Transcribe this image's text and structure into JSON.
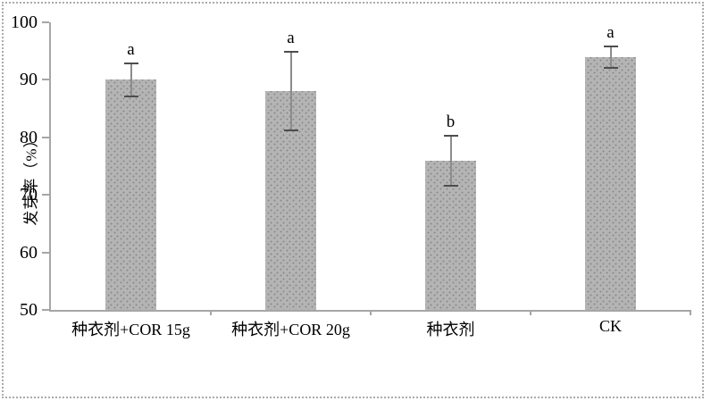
{
  "figure": {
    "border_color": "#ababab",
    "background": "#ffffff",
    "axis_color": "#a6a6a6"
  },
  "chart_data": {
    "type": "bar",
    "title": "",
    "xlabel": "",
    "ylabel": "发芽率（%）",
    "ylim": [
      50,
      100
    ],
    "yticks": [
      100,
      90,
      80,
      70,
      60,
      50
    ],
    "categories": [
      "种衣剂+COR 15g",
      "种衣剂+COR 20g",
      "种衣剂",
      "CK"
    ],
    "values": [
      90,
      88,
      76,
      94
    ],
    "error_bars": [
      3,
      7,
      4.5,
      2
    ],
    "sig_letters": [
      "a",
      "a",
      "b",
      "a"
    ],
    "grid": false,
    "legend": null,
    "bar_fill_color": "#b4b4b4",
    "bar_dot_color": "#8a8a8a",
    "error_bar_line_color": "#8c8c8c",
    "error_bar_cap_color": "#4d4d4d",
    "letter_color": "#000000"
  }
}
